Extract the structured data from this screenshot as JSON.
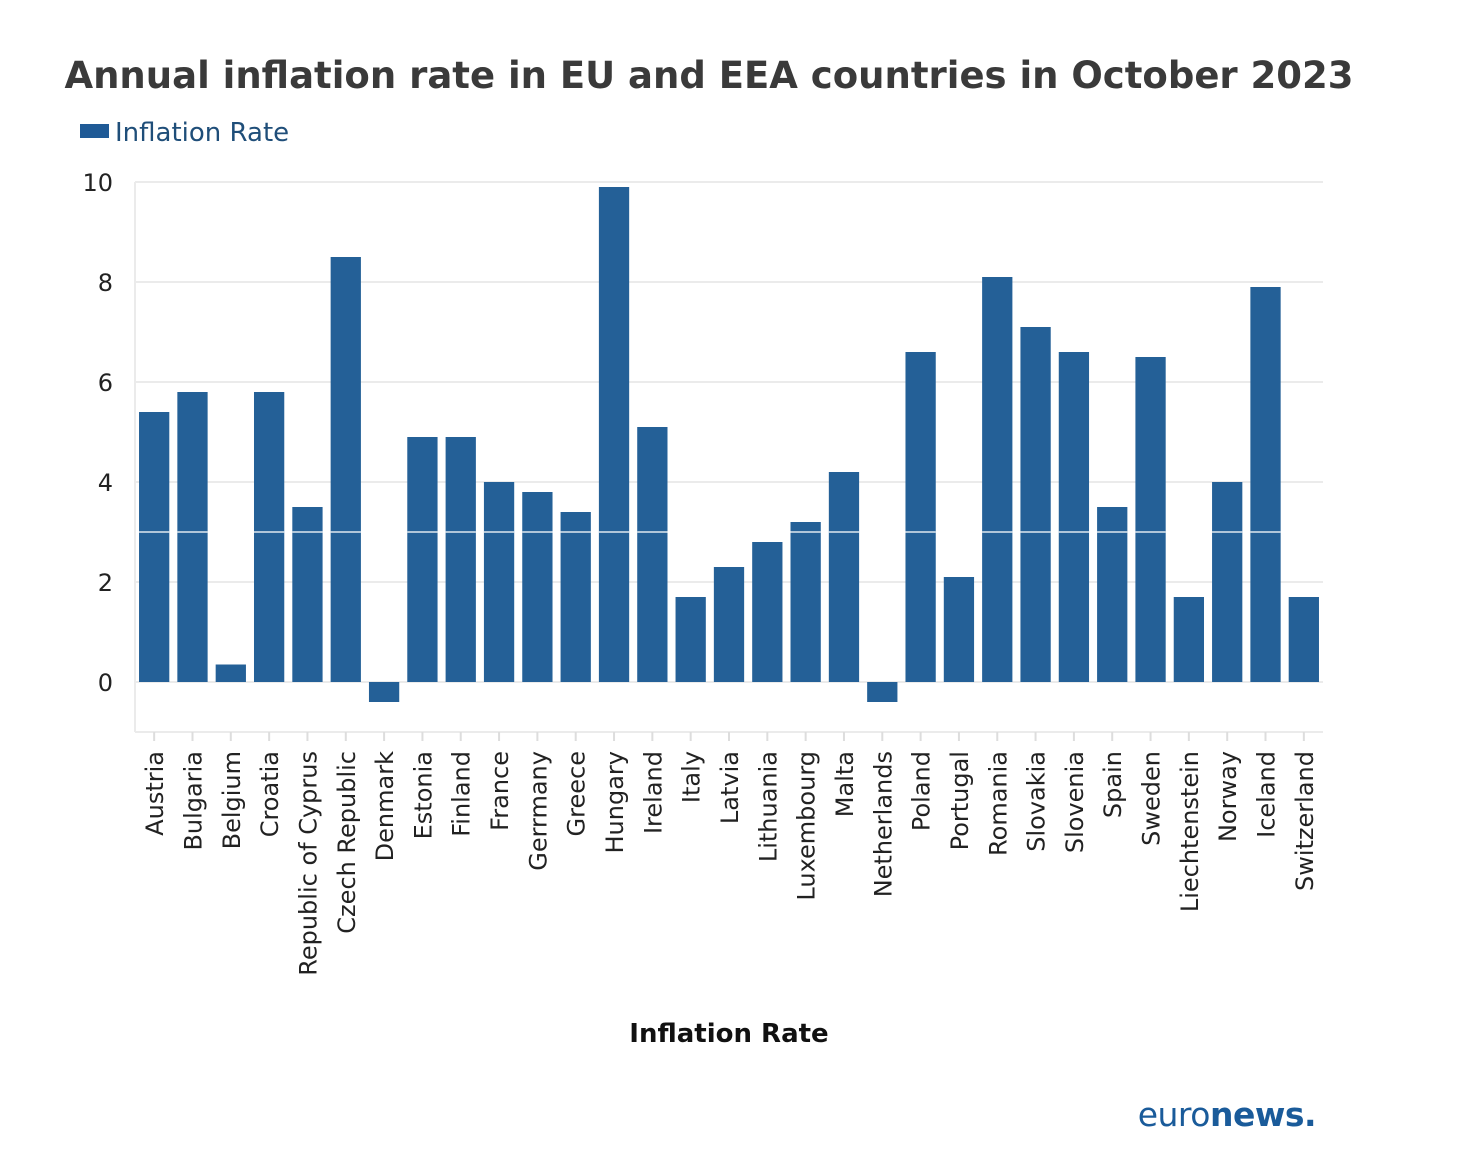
{
  "chart_data": {
    "type": "bar",
    "title": "Annual inflation rate in EU and EEA countries in October 2023",
    "legend": {
      "label": "Inflation Rate",
      "placement": "top-left"
    },
    "xlabel": "Inflation Rate",
    "ylabel": "",
    "ylim": [
      -1,
      10
    ],
    "yticks": [
      0,
      2,
      4,
      6,
      8,
      10
    ],
    "grid": true,
    "reference_line": 3,
    "categories": [
      "Austria",
      "Bulgaria",
      "Belgium",
      "Croatia",
      "Republic of Cyprus",
      "Czech Republic",
      "Denmark",
      "Estonia",
      "Finland",
      "France",
      "Gerrmany",
      "Greece",
      "Hungary",
      "Ireland",
      "Italy",
      "Latvia",
      "Lithuania",
      "Luxembourg",
      "Malta",
      "Netherlands",
      "Poland",
      "Portugal",
      "Romania",
      "Slovakia",
      "Slovenia",
      "Spain",
      "Sweden",
      "Liechtenstein",
      "Norway",
      "Iceland",
      "Switzerland"
    ],
    "series": [
      {
        "name": "Inflation Rate",
        "color": "#246097",
        "values": [
          5.4,
          5.8,
          0.35,
          5.8,
          3.5,
          8.5,
          -0.4,
          4.9,
          4.9,
          4.0,
          3.8,
          3.4,
          9.9,
          5.1,
          1.7,
          2.3,
          2.8,
          3.2,
          4.2,
          -0.4,
          6.6,
          2.1,
          8.1,
          7.1,
          6.6,
          3.5,
          6.5,
          1.7,
          4.0,
          7.9,
          1.7
        ]
      }
    ]
  },
  "brand": {
    "prefix": "euro",
    "suffix": "news."
  },
  "colors": {
    "bar": "#246097",
    "legend_swatch": "#1f5a96",
    "grid": "#ebebeb",
    "title": "#3a3a3a"
  }
}
